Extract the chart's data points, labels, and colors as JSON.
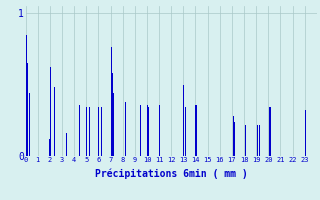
{
  "bar_color": "#0000cc",
  "background_color": "#d8f0f0",
  "grid_color": "#aac8c8",
  "axis_color": "#0000cc",
  "tick_label_color": "#0000cc",
  "ylim": [
    0,
    1.05
  ],
  "yticks": [
    0,
    1
  ],
  "ytick_labels": [
    "0",
    "1"
  ],
  "xlabel": "Précipitations 6min ( mm )",
  "hours": [
    0,
    1,
    2,
    3,
    4,
    5,
    6,
    7,
    8,
    9,
    10,
    11,
    12,
    13,
    14,
    15,
    16,
    17,
    18,
    19,
    20,
    21,
    22,
    23
  ],
  "values": [
    [
      0.85,
      0.65,
      0.0,
      0.44,
      0.0,
      0.0,
      0.0,
      0.0,
      0.0,
      0.0
    ],
    [
      0.0,
      0.0,
      0.0,
      0.0,
      0.0,
      0.0,
      0.0,
      0.0,
      0.0,
      0.12
    ],
    [
      0.62,
      0.0,
      0.0,
      0.48,
      0.0,
      0.0,
      0.0,
      0.0,
      0.0,
      0.0
    ],
    [
      0.0,
      0.0,
      0.0,
      0.16,
      0.0,
      0.0,
      0.0,
      0.0,
      0.0,
      0.0
    ],
    [
      0.0,
      0.0,
      0.0,
      0.0,
      0.36,
      0.0,
      0.0,
      0.0,
      0.0,
      0.0
    ],
    [
      0.34,
      0.0,
      0.34,
      0.0,
      0.0,
      0.0,
      0.0,
      0.0,
      0.0,
      0.0
    ],
    [
      0.34,
      0.0,
      0.34,
      0.0,
      0.0,
      0.0,
      0.0,
      0.0,
      0.0,
      0.0
    ],
    [
      0.76,
      0.58,
      0.44,
      0.0,
      0.0,
      0.0,
      0.0,
      0.0,
      0.0,
      0.0
    ],
    [
      0.0,
      0.0,
      0.38,
      0.0,
      0.0,
      0.0,
      0.0,
      0.0,
      0.0,
      0.0
    ],
    [
      0.0,
      0.0,
      0.0,
      0.0,
      0.36,
      0.0,
      0.0,
      0.0,
      0.0,
      0.0
    ],
    [
      0.36,
      0.34,
      0.0,
      0.0,
      0.0,
      0.0,
      0.0,
      0.0,
      0.0,
      0.0
    ],
    [
      0.36,
      0.0,
      0.0,
      0.0,
      0.0,
      0.0,
      0.0,
      0.0,
      0.0,
      0.0
    ],
    [
      0.0,
      0.0,
      0.0,
      0.0,
      0.0,
      0.0,
      0.0,
      0.0,
      0.0,
      0.0
    ],
    [
      0.5,
      0.34,
      0.0,
      0.0,
      0.0,
      0.0,
      0.0,
      0.0,
      0.0,
      0.0
    ],
    [
      0.36,
      0.0,
      0.0,
      0.0,
      0.0,
      0.0,
      0.0,
      0.0,
      0.0,
      0.0
    ],
    [
      0.0,
      0.0,
      0.0,
      0.0,
      0.0,
      0.0,
      0.0,
      0.0,
      0.0,
      0.0
    ],
    [
      0.0,
      0.0,
      0.0,
      0.0,
      0.0,
      0.0,
      0.0,
      0.0,
      0.0,
      0.0
    ],
    [
      0.0,
      0.28,
      0.24,
      0.0,
      0.0,
      0.0,
      0.0,
      0.0,
      0.0,
      0.0
    ],
    [
      0.0,
      0.22,
      0.0,
      0.0,
      0.0,
      0.0,
      0.0,
      0.0,
      0.0,
      0.0
    ],
    [
      0.0,
      0.22,
      0.22,
      0.0,
      0.0,
      0.0,
      0.0,
      0.0,
      0.0,
      0.0
    ],
    [
      0.0,
      0.34,
      0.0,
      0.0,
      0.0,
      0.0,
      0.0,
      0.0,
      0.0,
      0.0
    ],
    [
      0.0,
      0.0,
      0.0,
      0.0,
      0.0,
      0.0,
      0.0,
      0.0,
      0.0,
      0.0
    ],
    [
      0.0,
      0.0,
      0.0,
      0.0,
      0.0,
      0.0,
      0.0,
      0.0,
      0.0,
      0.0
    ],
    [
      0.32,
      0.0,
      0.0,
      0.0,
      0.0,
      0.0,
      0.0,
      0.0,
      0.0,
      0.0
    ]
  ]
}
